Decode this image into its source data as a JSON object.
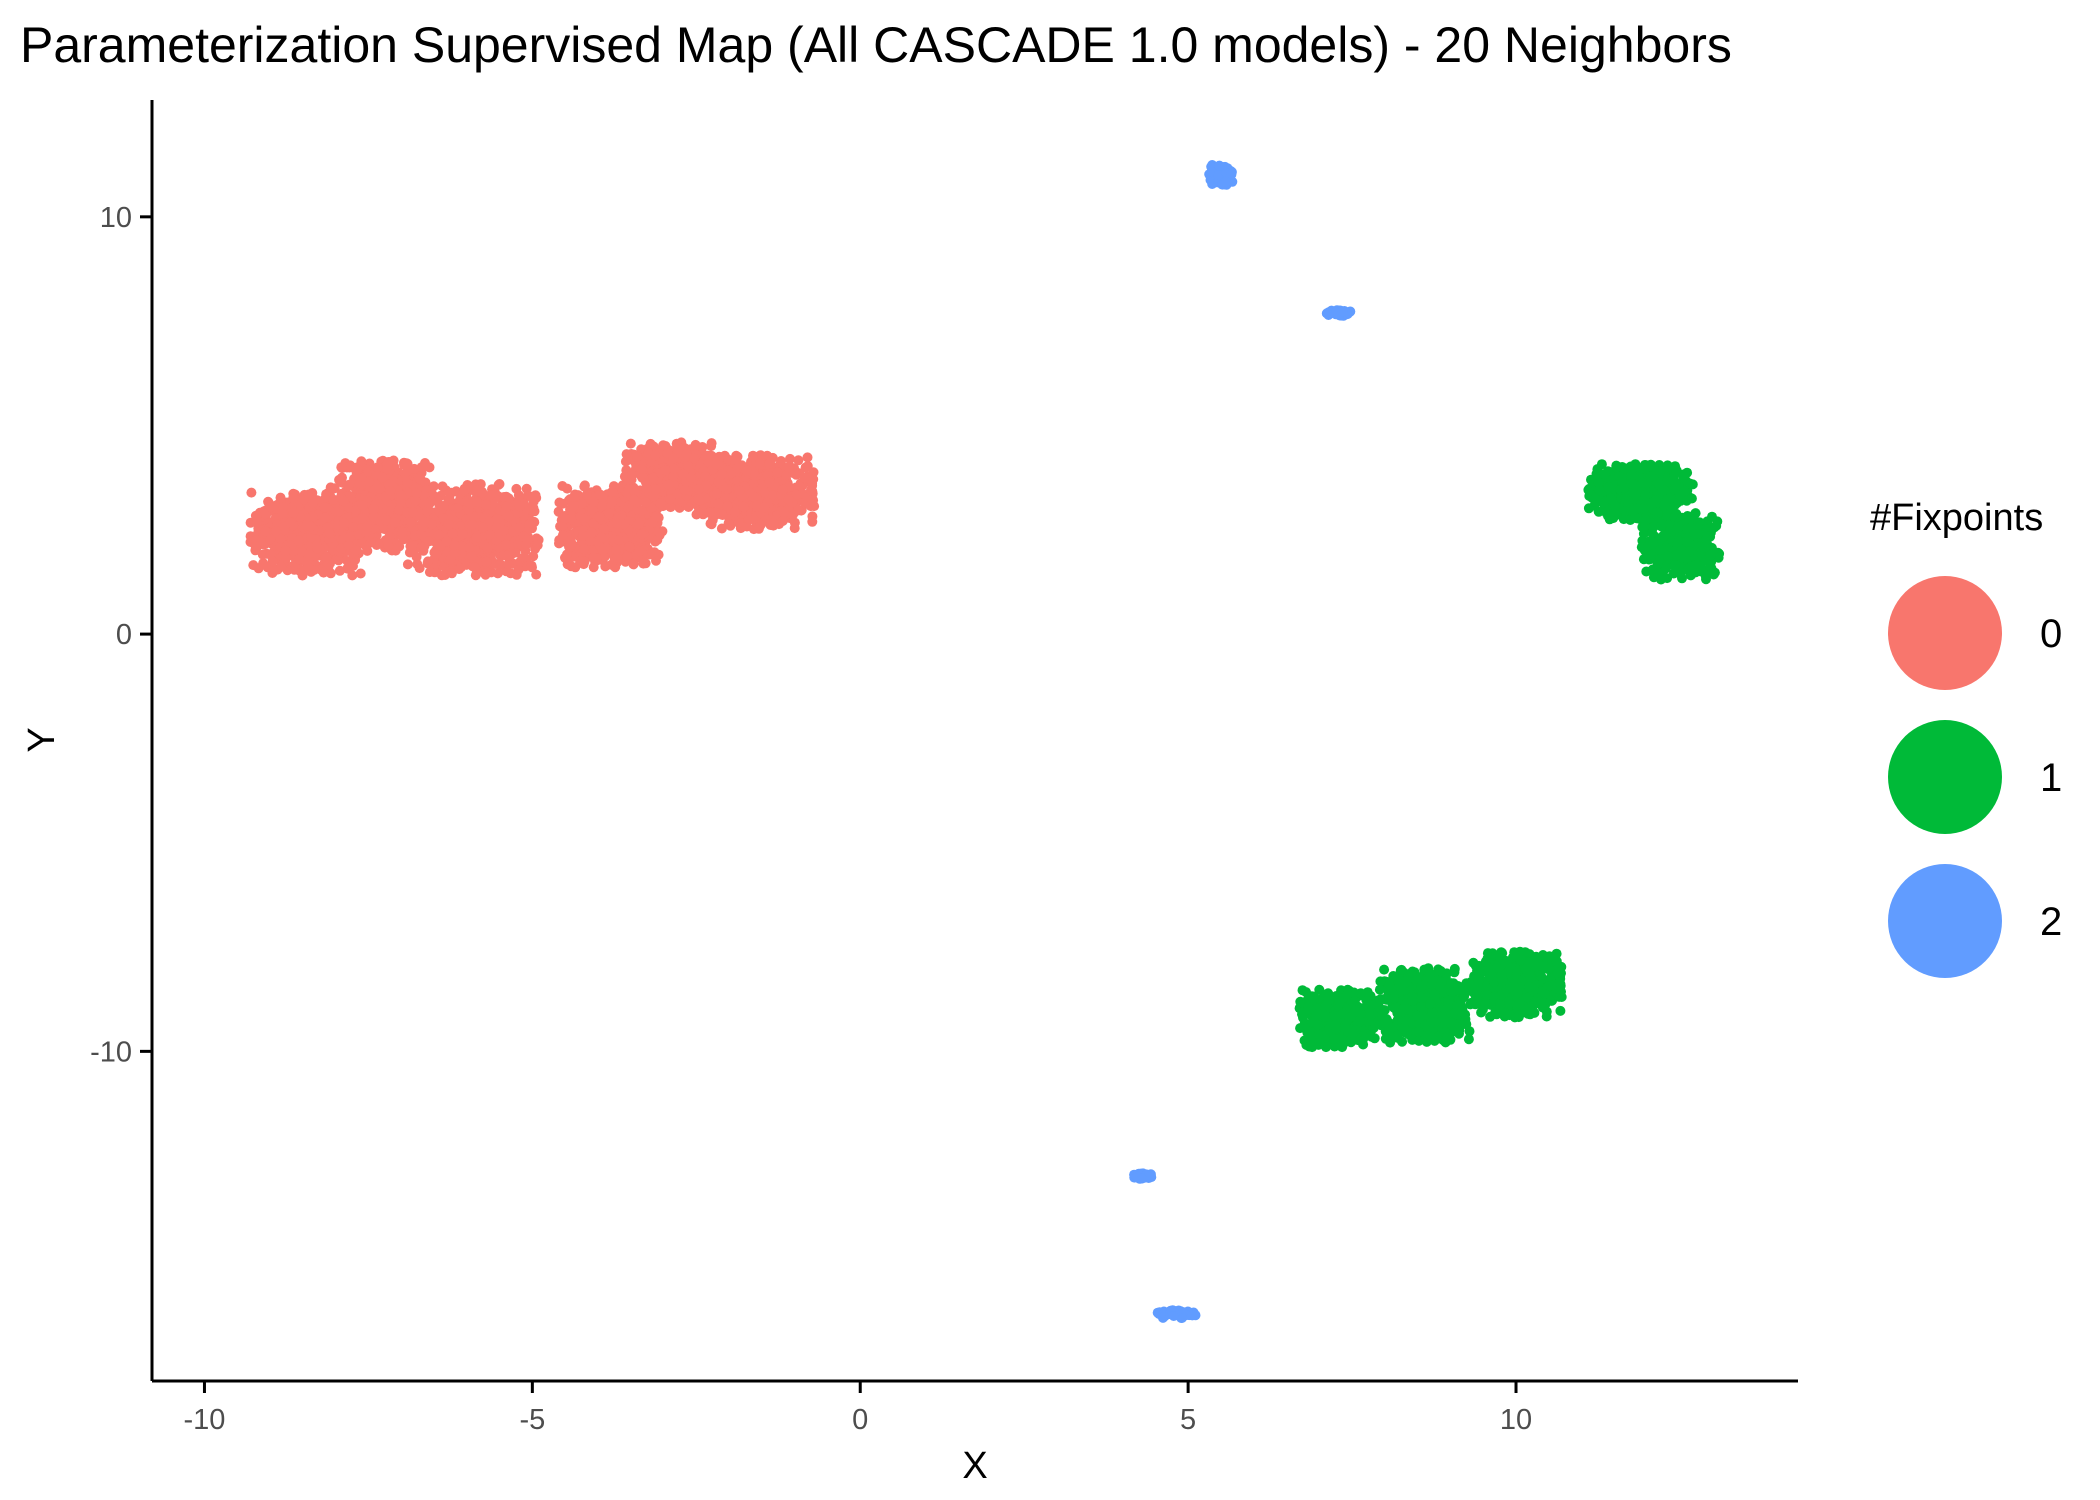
{
  "chart_data": {
    "type": "scatter",
    "title": "Parameterization Supervised Map (All CASCADE 1.0 models) - 20 Neighbors",
    "xlabel": "X",
    "ylabel": "Y",
    "xlim": [
      -10.8,
      14.3
    ],
    "ylim": [
      -17.9,
      12.8
    ],
    "xticks": [
      -10,
      -5,
      0,
      5,
      10
    ],
    "yticks": [
      -10,
      0,
      10
    ],
    "xtick_labels": [
      "-10",
      "-5",
      "0",
      "5",
      "10"
    ],
    "ytick_labels": [
      "-10",
      "0",
      "10"
    ],
    "grid": false,
    "legend": {
      "title": "#Fixpoints",
      "placement": "right",
      "entries": [
        {
          "label": "0",
          "color": "#F8766D"
        },
        {
          "label": "1",
          "color": "#00BA38"
        },
        {
          "label": "2",
          "color": "#619CFF"
        }
      ]
    },
    "series": [
      {
        "name": "0",
        "color": "#F8766D",
        "clusters": [
          {
            "center": [
              -8.4,
              2.4
            ],
            "spread": [
              0.9,
              1.0
            ],
            "points": 700
          },
          {
            "center": [
              -7.3,
              3.1
            ],
            "spread": [
              0.8,
              1.1
            ],
            "points": 650
          },
          {
            "center": [
              -5.9,
              2.5
            ],
            "spread": [
              1.0,
              1.1
            ],
            "points": 750
          },
          {
            "center": [
              -3.8,
              2.6
            ],
            "spread": [
              0.8,
              1.0
            ],
            "points": 650
          },
          {
            "center": [
              -2.8,
              3.8
            ],
            "spread": [
              0.8,
              0.8
            ],
            "points": 500
          },
          {
            "center": [
              -1.6,
              3.4
            ],
            "spread": [
              0.9,
              0.9
            ],
            "points": 600
          }
        ]
      },
      {
        "name": "1",
        "color": "#00BA38",
        "clusters": [
          {
            "center": [
              11.9,
              3.4
            ],
            "spread": [
              0.8,
              0.7
            ],
            "points": 500
          },
          {
            "center": [
              12.5,
              2.1
            ],
            "spread": [
              0.6,
              0.8
            ],
            "points": 400
          },
          {
            "center": [
              7.3,
              -9.2
            ],
            "spread": [
              0.6,
              0.7
            ],
            "points": 450
          },
          {
            "center": [
              8.6,
              -8.9
            ],
            "spread": [
              0.7,
              0.9
            ],
            "points": 600
          },
          {
            "center": [
              10.0,
              -8.4
            ],
            "spread": [
              0.7,
              0.8
            ],
            "points": 550
          }
        ]
      },
      {
        "name": "2",
        "color": "#619CFF",
        "clusters": [
          {
            "center": [
              5.5,
              11.0
            ],
            "spread": [
              0.18,
              0.25
            ],
            "points": 120
          },
          {
            "center": [
              7.3,
              7.7
            ],
            "spread": [
              0.2,
              0.08
            ],
            "points": 40
          },
          {
            "center": [
              4.3,
              -13.0
            ],
            "spread": [
              0.15,
              0.08
            ],
            "points": 30
          },
          {
            "center": [
              4.8,
              -16.3
            ],
            "spread": [
              0.35,
              0.1
            ],
            "points": 60
          }
        ]
      }
    ]
  }
}
